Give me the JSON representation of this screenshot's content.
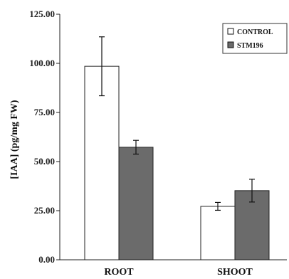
{
  "chart_data": {
    "type": "bar",
    "title": "",
    "xlabel": "",
    "ylabel": "[IAA] (pg/mg FW)",
    "categories": [
      "ROOT",
      "SHOOT"
    ],
    "ylim": [
      0,
      125
    ],
    "yticks": [
      "0.00",
      "25.00",
      "50.00",
      "75.00",
      "100.00",
      "125.00"
    ],
    "ytick_values": [
      0,
      25,
      50,
      75,
      100,
      125
    ],
    "grid": false,
    "legend_position": "top-right",
    "series": [
      {
        "name": "CONTROL",
        "values": [
          98.5,
          27.2
        ],
        "errors": [
          15,
          2
        ],
        "color": "#ffffff"
      },
      {
        "name": "STM196",
        "values": [
          57.3,
          35.2
        ],
        "errors": [
          3.5,
          5.8
        ],
        "color": "#6b6b6b"
      }
    ]
  }
}
